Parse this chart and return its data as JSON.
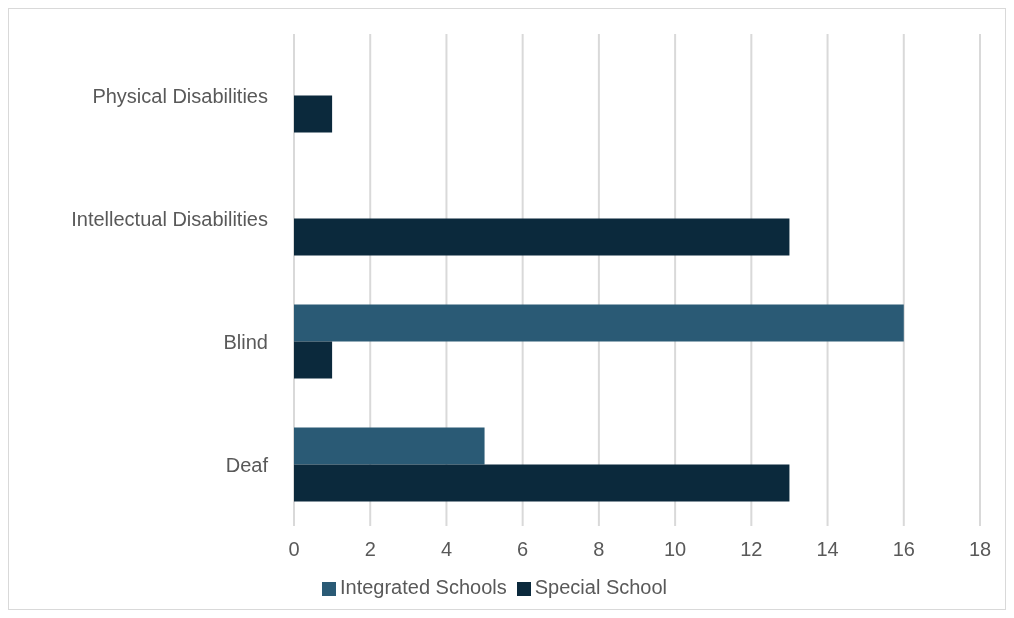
{
  "chart_data": {
    "type": "bar",
    "orientation": "horizontal",
    "categories": [
      "Physical Disabilities",
      "Intellectual Disabilities",
      "Blind",
      "Deaf"
    ],
    "series": [
      {
        "name": "Integrated Schools",
        "color": "#2a5a75",
        "values": [
          null,
          null,
          16,
          5
        ]
      },
      {
        "name": "Special School",
        "color": "#0b293c",
        "values": [
          1,
          13,
          1,
          13
        ]
      }
    ],
    "xlim": [
      0,
      18
    ],
    "xticks": [
      0,
      2,
      4,
      6,
      8,
      10,
      12,
      14,
      16,
      18
    ],
    "grid": "x",
    "legend": "bottom"
  }
}
